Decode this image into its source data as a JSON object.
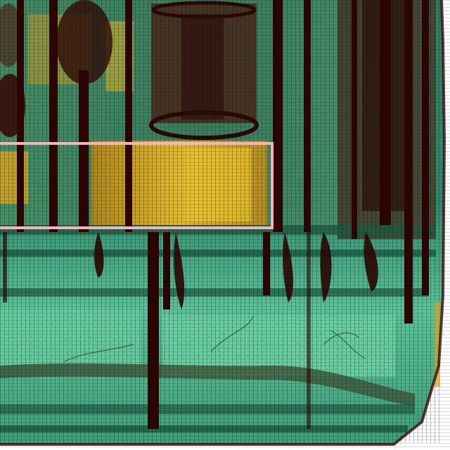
{
  "image": {
    "kind": "x-ray baggage scan, false-color",
    "palette": {
      "organic_light": "#5fc49a",
      "organic_mid": "#2f8f6a",
      "dense_dark": "#3a0a08",
      "metal_darkest": "#1e0302",
      "amber": "#d9a81f",
      "amber_light": "#f0c830",
      "background": "#ffffff",
      "noise_blue": "#3b6fd0"
    }
  },
  "highlight_box": {
    "visible": true,
    "stroke_color": "#f4b3bd"
  }
}
